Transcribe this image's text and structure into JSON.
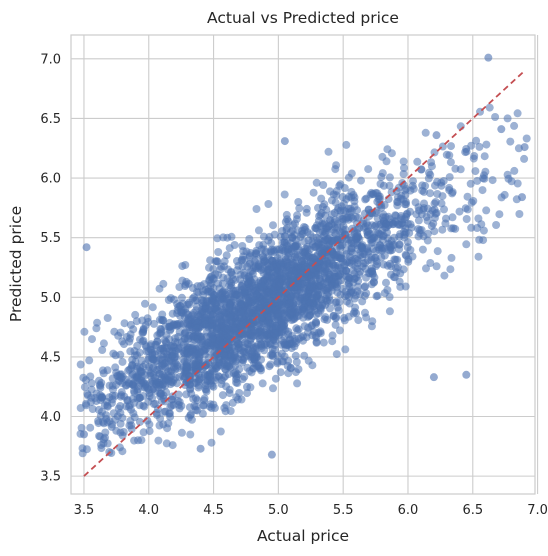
{
  "chart_data": {
    "type": "scatter",
    "title": "Actual vs Predicted price",
    "xlabel": "Actual price",
    "ylabel": "Predicted price",
    "xlim": [
      3.4,
      6.98
    ],
    "ylim": [
      3.35,
      7.2
    ],
    "x_ticks": [
      "3.5",
      "4.0",
      "4.5",
      "5.0",
      "5.5",
      "6.0",
      "6.5",
      "7.0"
    ],
    "y_ticks": [
      "3.5",
      "4.0",
      "4.5",
      "5.0",
      "5.5",
      "6.0",
      "6.5",
      "7.0"
    ],
    "grid": true,
    "colors": {
      "points": "#4c72b0",
      "reference_line": "#c44e52",
      "grid": "#cccccc",
      "axes_edge": "#cccccc"
    },
    "reference_line": {
      "x": [
        3.5,
        6.9
      ],
      "y": [
        3.5,
        6.9
      ],
      "style": "dashed"
    },
    "point_cloud": {
      "n_points": 3000,
      "relationship": "predicted ≈ 0.65*actual + 1.75 with residual spread ~0.28",
      "x_range": [
        3.47,
        6.92
      ],
      "density_peak_x": 5.0
    },
    "notable_points": [
      {
        "x": 6.62,
        "y": 7.01
      },
      {
        "x": 3.52,
        "y": 5.42
      },
      {
        "x": 4.95,
        "y": 3.68
      },
      {
        "x": 6.22,
        "y": 6.36
      },
      {
        "x": 6.72,
        "y": 6.41
      },
      {
        "x": 6.9,
        "y": 6.26
      },
      {
        "x": 5.05,
        "y": 6.31
      },
      {
        "x": 6.45,
        "y": 4.35
      },
      {
        "x": 6.2,
        "y": 4.33
      },
      {
        "x": 3.5,
        "y": 3.85
      },
      {
        "x": 4.4,
        "y": 3.73
      },
      {
        "x": 6.88,
        "y": 5.84
      }
    ]
  }
}
